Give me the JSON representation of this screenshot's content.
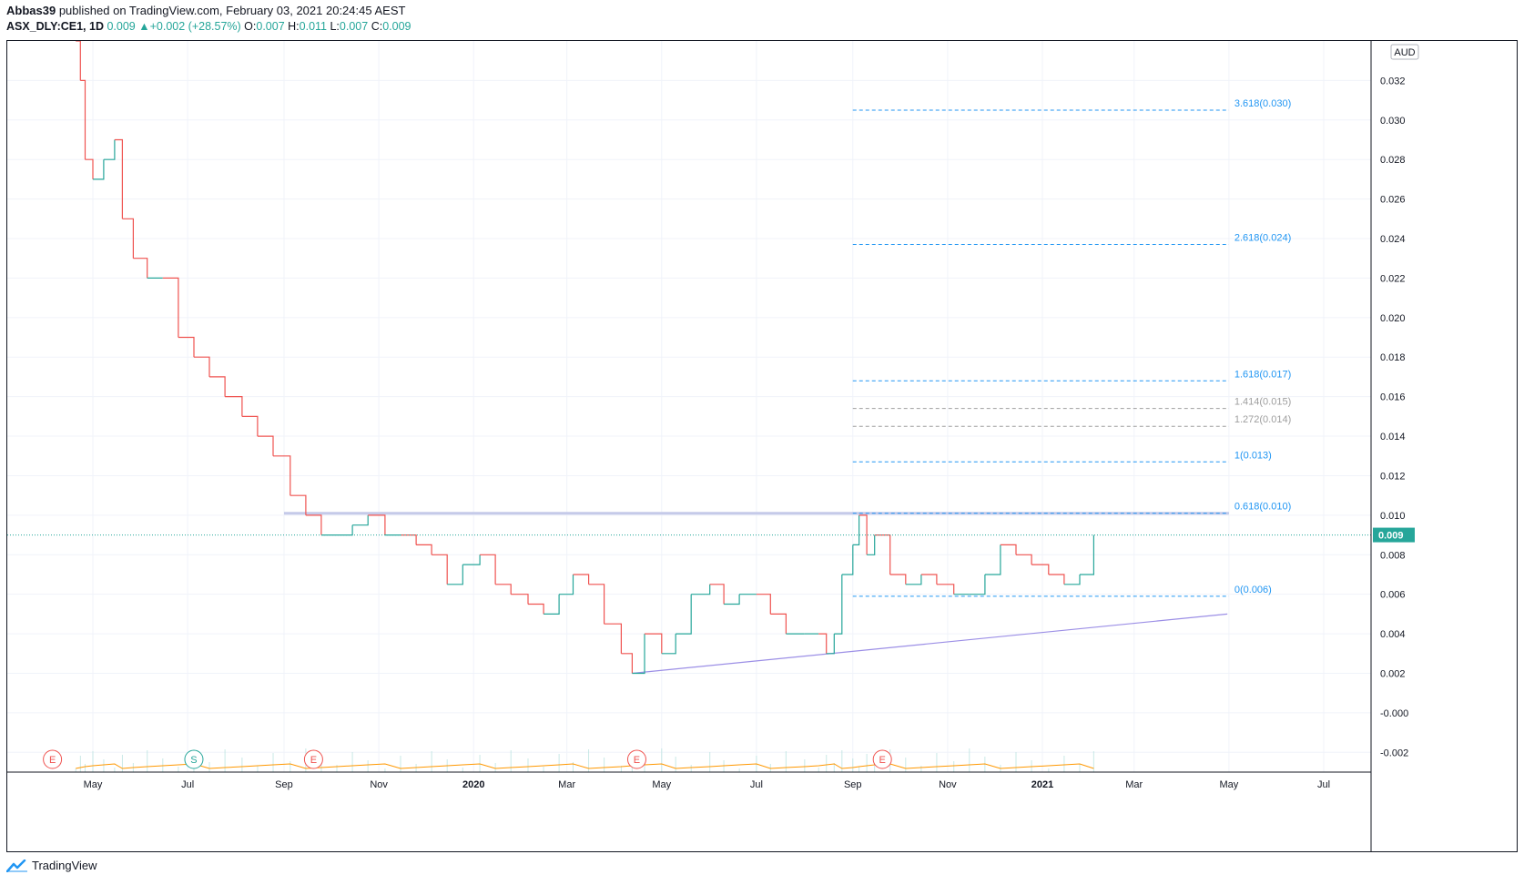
{
  "header": {
    "publisher": "Abbas39",
    "published_text": " published on TradingView.com, February 03, 2021 20:24:45 AEST",
    "symbol": "ASX_DLY:CE1, 1D",
    "last": "0.009",
    "change": "+0.002 (+28.57%)",
    "o_label": "O:",
    "o_value": "0.007",
    "h_label": "H:",
    "h_value": "0.011",
    "l_label": "L:",
    "l_value": "0.007",
    "c_label": "C:",
    "c_value": "0.009"
  },
  "footer": {
    "brand": "TradingView",
    "logo_icon": "tradingview-logo-icon"
  },
  "colors": {
    "up": "#26a69a",
    "down": "#ef5350",
    "fib": "#2196f3",
    "fib_gray": "#9e9e9e",
    "trend": "#9c8fe6",
    "resistance": "#c5cae9",
    "volume_ma": "#ff9800",
    "grid": "#f0f3fa"
  },
  "chart_data": {
    "type": "line",
    "subtype": "candlestick-like step line (green up / red down)",
    "currency": "AUD",
    "last_price_label": "0.009",
    "ylim": [
      -0.003,
      0.034
    ],
    "y_ticks": [
      "0.032",
      "0.030",
      "0.028",
      "0.026",
      "0.024",
      "0.022",
      "0.020",
      "0.018",
      "0.016",
      "0.014",
      "0.012",
      "0.010",
      "0.008",
      "0.006",
      "0.004",
      "0.002",
      "-0.000",
      "-0.002"
    ],
    "x_labels": [
      "May",
      "Jul",
      "Sep",
      "Nov",
      "2020",
      "Mar",
      "May",
      "Jul",
      "Sep",
      "Nov",
      "2021",
      "Mar",
      "May",
      "Jul"
    ],
    "x_label_bold": [
      "2020",
      "2021"
    ],
    "price_points": [
      [
        "2019-04-20",
        0.034
      ],
      [
        "2019-04-23",
        0.032
      ],
      [
        "2019-04-26",
        0.028
      ],
      [
        "2019-05-01",
        0.027
      ],
      [
        "2019-05-08",
        0.028
      ],
      [
        "2019-05-15",
        0.029
      ],
      [
        "2019-05-20",
        0.025
      ],
      [
        "2019-05-27",
        0.023
      ],
      [
        "2019-06-05",
        0.022
      ],
      [
        "2019-06-15",
        0.022
      ],
      [
        "2019-06-25",
        0.019
      ],
      [
        "2019-07-05",
        0.018
      ],
      [
        "2019-07-15",
        0.017
      ],
      [
        "2019-07-25",
        0.016
      ],
      [
        "2019-08-05",
        0.015
      ],
      [
        "2019-08-15",
        0.014
      ],
      [
        "2019-08-25",
        0.013
      ],
      [
        "2019-09-05",
        0.011
      ],
      [
        "2019-09-15",
        0.01
      ],
      [
        "2019-09-25",
        0.009
      ],
      [
        "2019-10-05",
        0.009
      ],
      [
        "2019-10-15",
        0.0095
      ],
      [
        "2019-10-25",
        0.01
      ],
      [
        "2019-11-05",
        0.009
      ],
      [
        "2019-11-15",
        0.009
      ],
      [
        "2019-11-25",
        0.0085
      ],
      [
        "2019-12-05",
        0.008
      ],
      [
        "2019-12-15",
        0.0065
      ],
      [
        "2019-12-25",
        0.0075
      ],
      [
        "2020-01-05",
        0.008
      ],
      [
        "2020-01-15",
        0.0065
      ],
      [
        "2020-01-25",
        0.006
      ],
      [
        "2020-02-05",
        0.0055
      ],
      [
        "2020-02-15",
        0.005
      ],
      [
        "2020-02-25",
        0.006
      ],
      [
        "2020-03-05",
        0.007
      ],
      [
        "2020-03-15",
        0.0065
      ],
      [
        "2020-03-25",
        0.0045
      ],
      [
        "2020-04-05",
        0.003
      ],
      [
        "2020-04-12",
        0.002
      ],
      [
        "2020-04-20",
        0.004
      ],
      [
        "2020-05-01",
        0.003
      ],
      [
        "2020-05-10",
        0.004
      ],
      [
        "2020-05-20",
        0.006
      ],
      [
        "2020-06-01",
        0.0065
      ],
      [
        "2020-06-10",
        0.0055
      ],
      [
        "2020-06-20",
        0.006
      ],
      [
        "2020-07-01",
        0.006
      ],
      [
        "2020-07-10",
        0.005
      ],
      [
        "2020-07-20",
        0.004
      ],
      [
        "2020-08-01",
        0.004
      ],
      [
        "2020-08-10",
        0.004
      ],
      [
        "2020-08-15",
        0.003
      ],
      [
        "2020-08-20",
        0.004
      ],
      [
        "2020-08-25",
        0.007
      ],
      [
        "2020-09-01",
        0.0085
      ],
      [
        "2020-09-05",
        0.01
      ],
      [
        "2020-09-10",
        0.008
      ],
      [
        "2020-09-15",
        0.009
      ],
      [
        "2020-09-25",
        0.007
      ],
      [
        "2020-10-05",
        0.0065
      ],
      [
        "2020-10-15",
        0.007
      ],
      [
        "2020-10-25",
        0.0065
      ],
      [
        "2020-11-05",
        0.006
      ],
      [
        "2020-11-15",
        0.006
      ],
      [
        "2020-11-25",
        0.007
      ],
      [
        "2020-12-05",
        0.0085
      ],
      [
        "2020-12-15",
        0.008
      ],
      [
        "2020-12-25",
        0.0075
      ],
      [
        "2021-01-05",
        0.007
      ],
      [
        "2021-01-15",
        0.0065
      ],
      [
        "2021-01-25",
        0.007
      ],
      [
        "2021-02-03",
        0.009
      ]
    ],
    "fib_levels": [
      {
        "label": "3.618(0.030)",
        "value": 0.0305,
        "color": "fib"
      },
      {
        "label": "2.618(0.024)",
        "value": 0.0237,
        "color": "fib"
      },
      {
        "label": "1.618(0.017)",
        "value": 0.0168,
        "color": "fib"
      },
      {
        "label": "1.414(0.015)",
        "value": 0.0154,
        "color": "fib_gray"
      },
      {
        "label": "1.272(0.014)",
        "value": 0.0145,
        "color": "fib_gray"
      },
      {
        "label": "1(0.013)",
        "value": 0.0127,
        "color": "fib"
      },
      {
        "label": "0.618(0.010)",
        "value": 0.0101,
        "color": "fib"
      },
      {
        "label": "0(0.006)",
        "value": 0.0059,
        "color": "fib"
      }
    ],
    "fib_start": "2020-09-01",
    "fib_end": "2021-05-01",
    "resistance": {
      "value": 0.0101,
      "from": "2019-09-01",
      "to": "2021-05-01"
    },
    "trendline": {
      "from": [
        "2020-04-12",
        0.002
      ],
      "to": [
        "2021-04-30",
        0.005
      ]
    },
    "event_markers": [
      {
        "label": "E",
        "date": "2019-04-05",
        "color": "down"
      },
      {
        "label": "S",
        "date": "2019-07-05",
        "color": "up"
      },
      {
        "label": "E",
        "date": "2019-09-20",
        "color": "down"
      },
      {
        "label": "E",
        "date": "2020-04-15",
        "color": "down"
      },
      {
        "label": "E",
        "date": "2020-09-20",
        "color": "down"
      }
    ]
  }
}
